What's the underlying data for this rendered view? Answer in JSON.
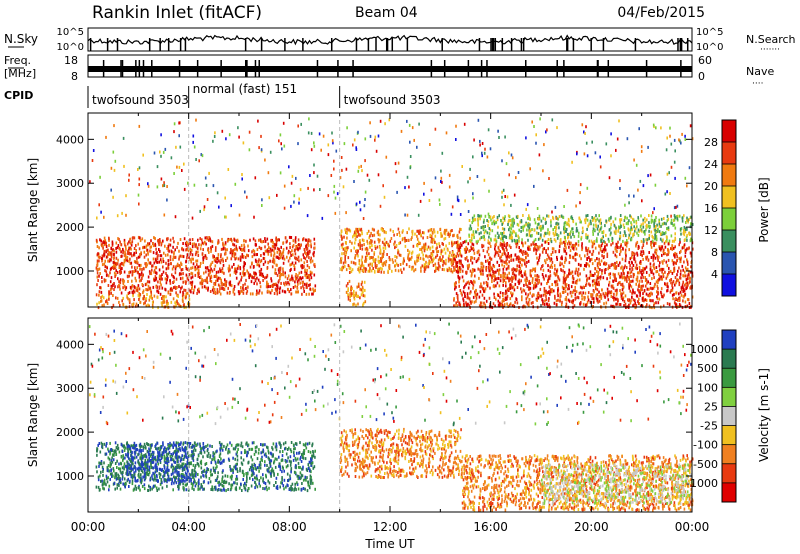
{
  "header": {
    "station": "Rankin Inlet (fitACF)",
    "beam": "Beam 04",
    "date": "04/Feb/2015"
  },
  "nsky": {
    "label": "N.Sky",
    "left_ticks": [
      "10^5",
      "10^0"
    ],
    "right_label": "N.Search",
    "right_ticks": [
      "10^5",
      "10^0"
    ],
    "right_legend_glyph": "·······"
  },
  "freq": {
    "label_lines": [
      "Freq.",
      "[MHz]"
    ],
    "left_ticks": [
      "18",
      "8"
    ],
    "right_label": "Nave",
    "right_ticks": [
      "60",
      "0"
    ],
    "right_legend_glyph": "····"
  },
  "cpid": {
    "label": "CPID",
    "segments": [
      {
        "label": "twofsound 3503",
        "start_hour": 0,
        "end_hour": 4
      },
      {
        "label": "normal (fast) 151",
        "start_hour": 4,
        "end_hour": 10
      },
      {
        "label": "twofsound 3503",
        "start_hour": 10,
        "end_hour": 24
      }
    ]
  },
  "chart_data": [
    {
      "type": "heatmap",
      "name": "power",
      "ylabel": "Slant Range [km]",
      "yticks": [
        1000,
        2000,
        3000,
        4000
      ],
      "ylim": [
        180,
        4600
      ],
      "xlim": [
        0,
        24
      ],
      "colorbar": {
        "label": "Power [dB]",
        "ticks": [
          "4",
          "8",
          "12",
          "16",
          "20",
          "24",
          "28"
        ],
        "colors": [
          "#1010e0",
          "#2a55b0",
          "#3a8f5f",
          "#7ccf3a",
          "#f0c020",
          "#f07a10",
          "#e83a10",
          "#d80000"
        ]
      },
      "regions": [
        {
          "t0": 0.3,
          "t1": 9.0,
          "r0": 500,
          "r1": 1800,
          "level": 6
        },
        {
          "t0": 0.3,
          "t1": 4.0,
          "r0": 200,
          "r1": 500,
          "level": 5
        },
        {
          "t0": 10.0,
          "t1": 14.8,
          "r0": 1000,
          "r1": 2000,
          "level": 5
        },
        {
          "t0": 10.2,
          "t1": 11.0,
          "r0": 250,
          "r1": 800,
          "level": 5
        },
        {
          "t0": 14.5,
          "t1": 24.0,
          "r0": 200,
          "r1": 1700,
          "level": 6
        },
        {
          "t0": 15.0,
          "t1": 24.0,
          "r0": 1700,
          "r1": 2300,
          "level": 3
        }
      ]
    },
    {
      "type": "heatmap",
      "name": "velocity",
      "xlabel": "Time UT",
      "ylabel": "Slant Range [km]",
      "yticks": [
        1000,
        2000,
        3000,
        4000
      ],
      "ylim": [
        180,
        4600
      ],
      "xlim": [
        0,
        24
      ],
      "xticks": [
        "00:00",
        "04:00",
        "08:00",
        "12:00",
        "16:00",
        "20:00",
        "00:00"
      ],
      "colorbar": {
        "label": "Velocity [m s-1]",
        "ticks": [
          "1000",
          "500",
          "100",
          "25",
          "-25",
          "-100",
          "-500",
          "-1000"
        ],
        "colors": [
          "#2040c0",
          "#2a7a50",
          "#3a9a40",
          "#80d040",
          "#c8c8c8",
          "#f0c020",
          "#f08020",
          "#e83a10",
          "#e00000"
        ]
      },
      "regions": [
        {
          "t0": 0.3,
          "t1": 9.0,
          "r0": 700,
          "r1": 1800,
          "level": 1
        },
        {
          "t0": 1.5,
          "t1": 4.2,
          "r0": 900,
          "r1": 1800,
          "level": 0
        },
        {
          "t0": 10.0,
          "t1": 14.8,
          "r0": 1000,
          "r1": 2100,
          "level": 6
        },
        {
          "t0": 14.8,
          "t1": 24.0,
          "r0": 250,
          "r1": 1500,
          "level": 6
        },
        {
          "t0": 18.0,
          "t1": 24.0,
          "r0": 400,
          "r1": 1300,
          "level": 4
        }
      ]
    }
  ]
}
